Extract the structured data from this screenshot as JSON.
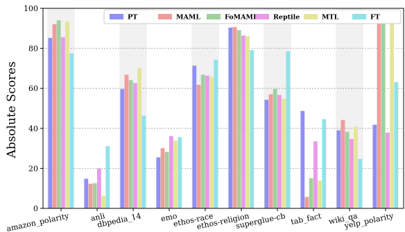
{
  "chart_data": {
    "type": "bar",
    "title": "",
    "xlabel": "",
    "ylabel": "Absolute Scores",
    "ylim": [
      0,
      100
    ],
    "yticks": [
      0,
      20,
      40,
      60,
      80,
      100
    ],
    "grid": "horizontal dotted",
    "legend_placement": "top-right",
    "categories": [
      "amazon_polarity",
      "anli",
      "dbpedia_14",
      "emo",
      "ethos-race",
      "ethos-religion",
      "superglue-cb",
      "tab_fact",
      "wiki_qa",
      "yelp_polarity"
    ],
    "shaded_categories": [
      0,
      2,
      4,
      6,
      8
    ],
    "series": [
      {
        "name": "PT",
        "color": "#8f8ff5",
        "values": [
          85.2,
          14.8,
          59.6,
          25.5,
          71.3,
          90.4,
          54.3,
          48.7,
          39.0,
          41.8
        ]
      },
      {
        "name": "MAML",
        "color": "#f29b9b",
        "values": [
          92.1,
          12.3,
          66.8,
          30.1,
          61.8,
          90.7,
          57.1,
          5.7,
          44.2,
          94.3
        ]
      },
      {
        "name": "FoMAML",
        "color": "#9fd19f",
        "values": [
          94.0,
          12.6,
          64.1,
          28.2,
          66.8,
          89.1,
          59.7,
          15.1,
          38.3,
          94.5
        ]
      },
      {
        "name": "Reptile",
        "color": "#e89be8",
        "values": [
          85.6,
          19.9,
          62.6,
          36.2,
          66.4,
          86.4,
          56.7,
          33.5,
          34.7,
          37.9
        ]
      },
      {
        "name": "MTL",
        "color": "#e5e59a",
        "values": [
          93.5,
          6.3,
          70.1,
          33.9,
          65.7,
          86.1,
          54.9,
          13.9,
          40.9,
          93.8
        ]
      },
      {
        "name": "FT",
        "color": "#8fe3e8",
        "values": [
          77.5,
          31.1,
          46.4,
          35.6,
          74.3,
          79.1,
          78.5,
          44.6,
          24.8,
          63.1
        ]
      }
    ]
  }
}
